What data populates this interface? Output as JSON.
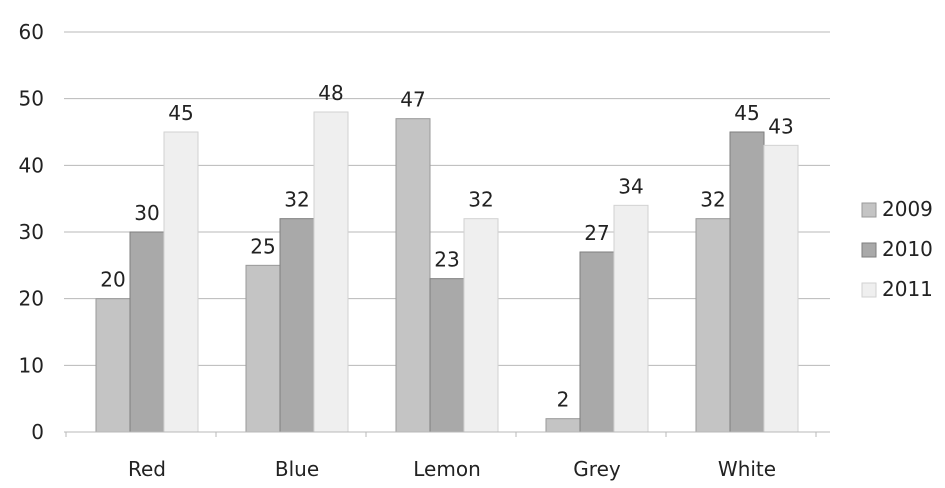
{
  "chart_data": {
    "type": "bar",
    "categories": [
      "Red",
      "Blue",
      "Lemon",
      "Grey",
      "White"
    ],
    "series": [
      {
        "name": "2009",
        "values": [
          20,
          25,
          47,
          2,
          32
        ],
        "color": "#c4c4c4",
        "stroke": "#9a9a9a"
      },
      {
        "name": "2010",
        "values": [
          30,
          32,
          23,
          27,
          45
        ],
        "color": "#a9a9a9",
        "stroke": "#7e7e7e"
      },
      {
        "name": "2011",
        "values": [
          45,
          48,
          32,
          34,
          43
        ],
        "color": "#efefef",
        "stroke": "#d2d2d2"
      }
    ],
    "ylim": [
      0,
      60
    ],
    "yticks": [
      0,
      10,
      20,
      30,
      40,
      50,
      60
    ],
    "grid": true,
    "legend_position": "right",
    "data_labels": true,
    "title": "",
    "xlabel": "",
    "ylabel": ""
  }
}
